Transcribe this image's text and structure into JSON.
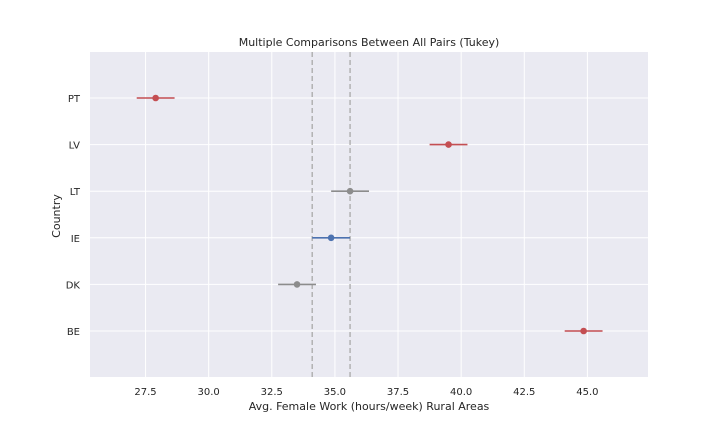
{
  "chart_data": {
    "type": "scatter",
    "title": "Multiple Comparisons Between All Pairs (Tukey)",
    "xlabel": "Avg. Female Work (hours/week) Rural Areas",
    "ylabel": "Country",
    "xlim": [
      25.3,
      47.4
    ],
    "x_ticks": [
      "27.5",
      "30.0",
      "32.5",
      "35.0",
      "37.5",
      "40.0",
      "42.5",
      "45.0"
    ],
    "categories": [
      "PT",
      "LV",
      "LT",
      "IE",
      "DK",
      "BE"
    ],
    "points": [
      {
        "label": "PT",
        "value": 27.9,
        "ci_low": 27.15,
        "ci_high": 28.65,
        "color": "#c44e52"
      },
      {
        "label": "LV",
        "value": 39.5,
        "ci_low": 38.75,
        "ci_high": 40.25,
        "color": "#c44e52"
      },
      {
        "label": "LT",
        "value": 35.6,
        "ci_low": 34.85,
        "ci_high": 36.35,
        "color": "#8c8c8c"
      },
      {
        "label": "IE",
        "value": 34.85,
        "ci_low": 34.1,
        "ci_high": 35.6,
        "color": "#4c72b0"
      },
      {
        "label": "DK",
        "value": 33.5,
        "ci_low": 32.75,
        "ci_high": 34.25,
        "color": "#8c8c8c"
      },
      {
        "label": "BE",
        "value": 44.85,
        "ci_low": 44.1,
        "ci_high": 45.6,
        "color": "#c44e52"
      }
    ],
    "reference_lines": [
      34.1,
      35.6
    ],
    "grid": true,
    "colors": {
      "background": "#eaeaf2",
      "grid": "#ffffff",
      "reference": "#a9a9a9"
    }
  }
}
